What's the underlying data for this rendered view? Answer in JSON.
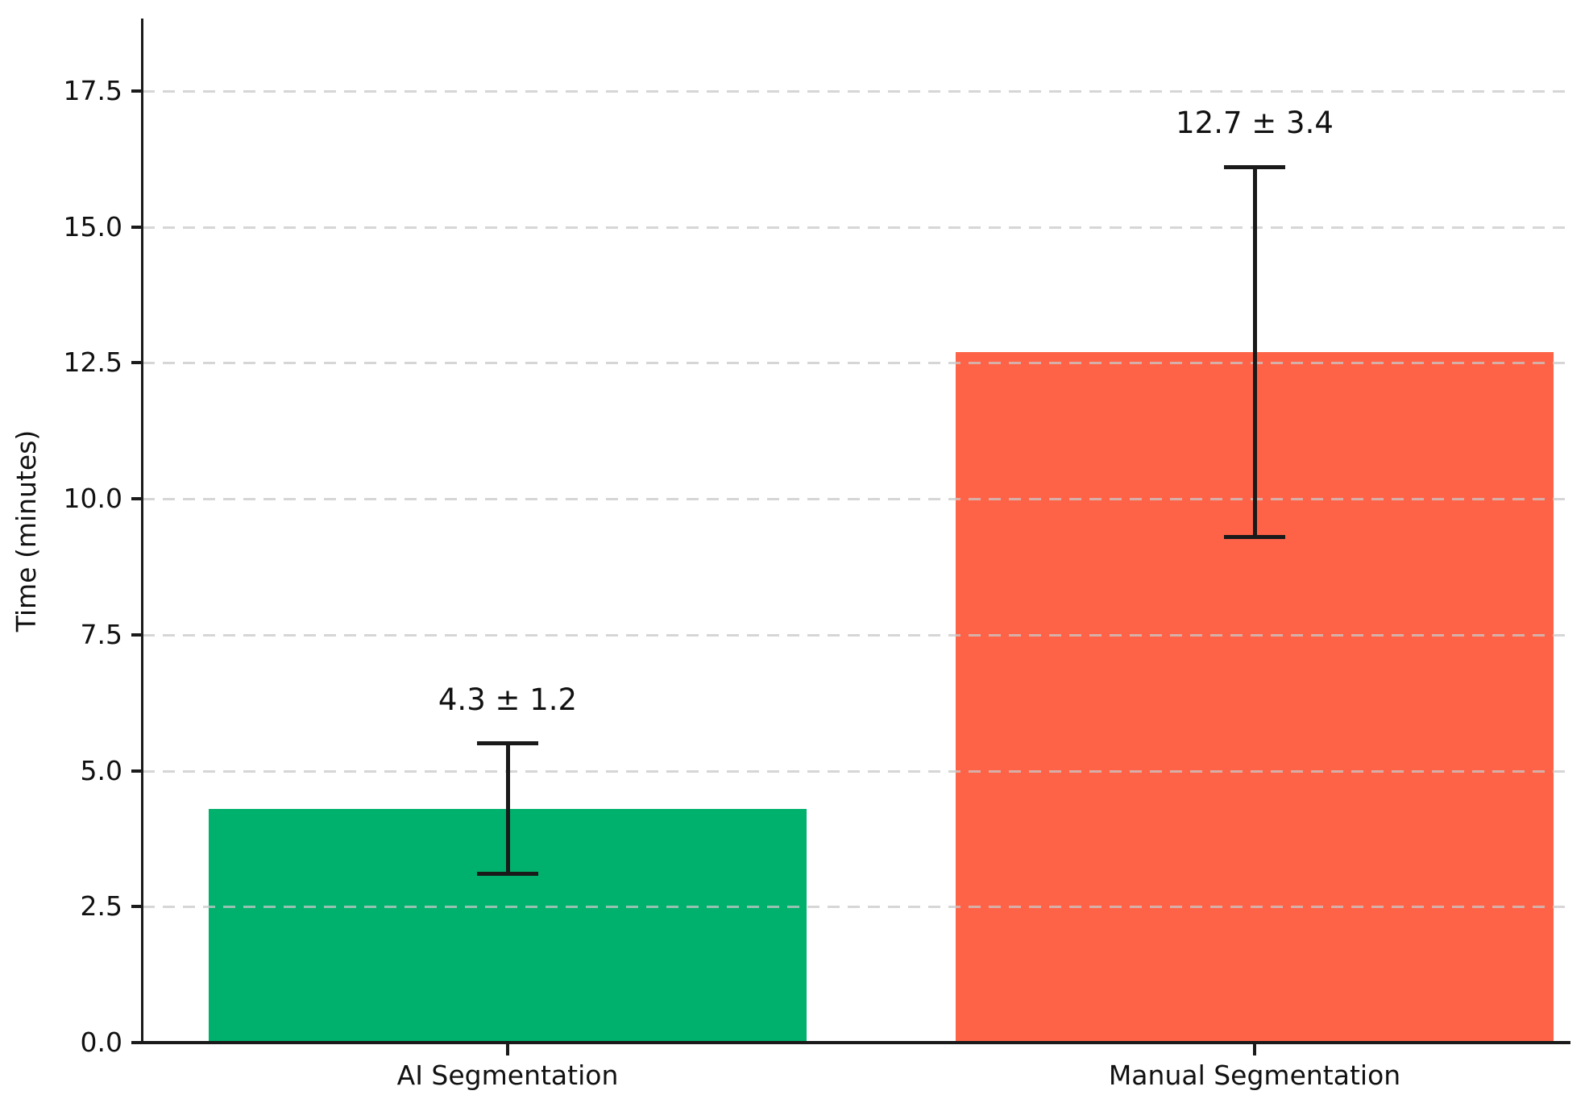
{
  "chart_data": {
    "type": "bar",
    "title": "",
    "ylabel": "Time (minutes)",
    "xlabel": "",
    "categories": [
      "AI Segmentation",
      "Manual Segmentation"
    ],
    "values": [
      4.3,
      12.7
    ],
    "errors": [
      1.2,
      3.4
    ],
    "annotations": [
      "4.3 ± 1.2",
      "12.7 ± 3.4"
    ],
    "bar_colors": [
      "#00B16D",
      "#FF6347"
    ],
    "error_bar_color": "#1a1a1a",
    "axis_color": "#1a1a1a",
    "grid": {
      "axis": "y",
      "style": "dashed",
      "color": "#c8c8c8"
    },
    "legend": "none",
    "ylim": [
      0,
      18.83
    ],
    "ytick_values": [
      0,
      2.5,
      5,
      7.5,
      10,
      12.5,
      15,
      17.5
    ],
    "ytick_labels": [
      "0.0",
      "2.5",
      "5.0",
      "7.5",
      "10.0",
      "12.5",
      "15.0",
      "17.5"
    ]
  }
}
